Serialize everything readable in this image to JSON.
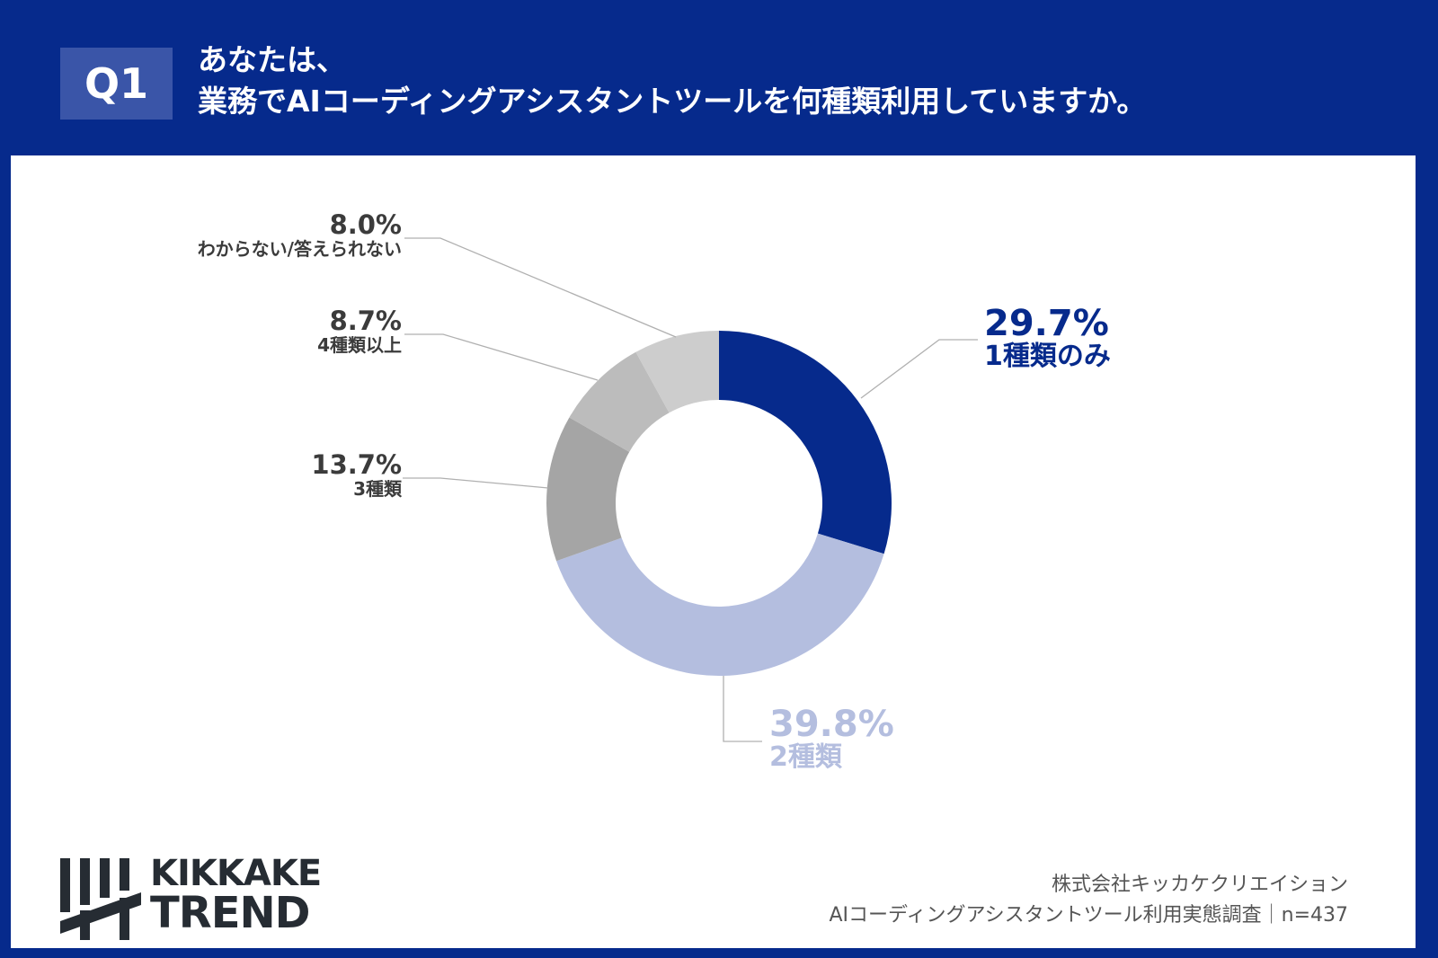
{
  "header": {
    "badge": "Q1",
    "title_line1": "あなたは、",
    "title_line2": "業務でAIコーディングアシスタントツールを何種類利用していますか。"
  },
  "chart_data": {
    "type": "pie",
    "donut": true,
    "start": "top, clockwise",
    "slices": [
      {
        "label": "1種類のみ",
        "value": 29.7,
        "pct_text": "29.7%",
        "color": "#062a8c"
      },
      {
        "label": "2種類",
        "value": 39.8,
        "pct_text": "39.8%",
        "color": "#b4bedf"
      },
      {
        "label": "3種類",
        "value": 13.7,
        "pct_text": "13.7%",
        "color": "#a5a5a5"
      },
      {
        "label": "4種類以上",
        "value": 8.7,
        "pct_text": "8.7%",
        "color": "#bcbcbc"
      },
      {
        "label": "わからない/答えられない",
        "value": 8.0,
        "pct_text": "8.0%",
        "color": "#cdcdcd"
      }
    ]
  },
  "footer": {
    "company": "株式会社キッカケクリエイション",
    "survey": "AIコーディングアシスタントツール利用実態調査｜n=437"
  },
  "logo": {
    "line1": "KIKKAKE",
    "line2": "TREND"
  },
  "colors": {
    "brand": "#062a8c",
    "accent_light": "#b4bedf"
  }
}
